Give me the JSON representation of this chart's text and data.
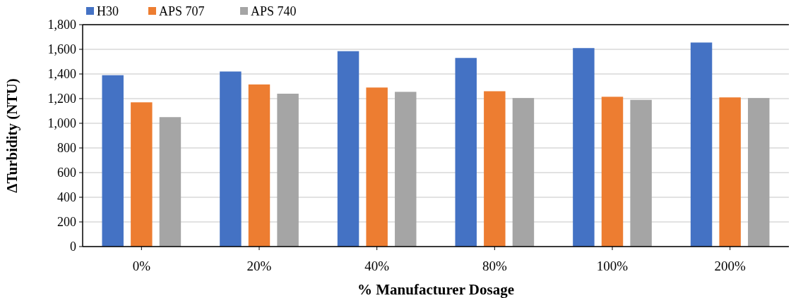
{
  "chart_data": {
    "type": "bar",
    "xlabel": "% Manufacturer Dosage",
    "ylabel": "ΔTurbidity (NTU)",
    "categories": [
      "0%",
      "20%",
      "40%",
      "80%",
      "100%",
      "200%"
    ],
    "series": [
      {
        "name": "H30",
        "color": "#4472c4",
        "values": [
          1390,
          1420,
          1585,
          1530,
          1610,
          1655
        ]
      },
      {
        "name": "APS 707",
        "color": "#ed7d31",
        "values": [
          1170,
          1315,
          1290,
          1260,
          1215,
          1210
        ]
      },
      {
        "name": "APS 740",
        "color": "#a5a5a5",
        "values": [
          1050,
          1240,
          1255,
          1205,
          1190,
          1205
        ]
      }
    ],
    "ylim": [
      0,
      1800
    ],
    "yticks": [
      {
        "value": 0,
        "label": "0"
      },
      {
        "value": 200,
        "label": "200"
      },
      {
        "value": 400,
        "label": "400"
      },
      {
        "value": 600,
        "label": "600"
      },
      {
        "value": 800,
        "label": "800"
      },
      {
        "value": 1000,
        "label": "1,000"
      },
      {
        "value": 1200,
        "label": "1,200"
      },
      {
        "value": 1400,
        "label": "1,400"
      },
      {
        "value": 1600,
        "label": "1,600"
      },
      {
        "value": 1800,
        "label": "1,800"
      }
    ],
    "grid": "y",
    "legend": "top left"
  }
}
